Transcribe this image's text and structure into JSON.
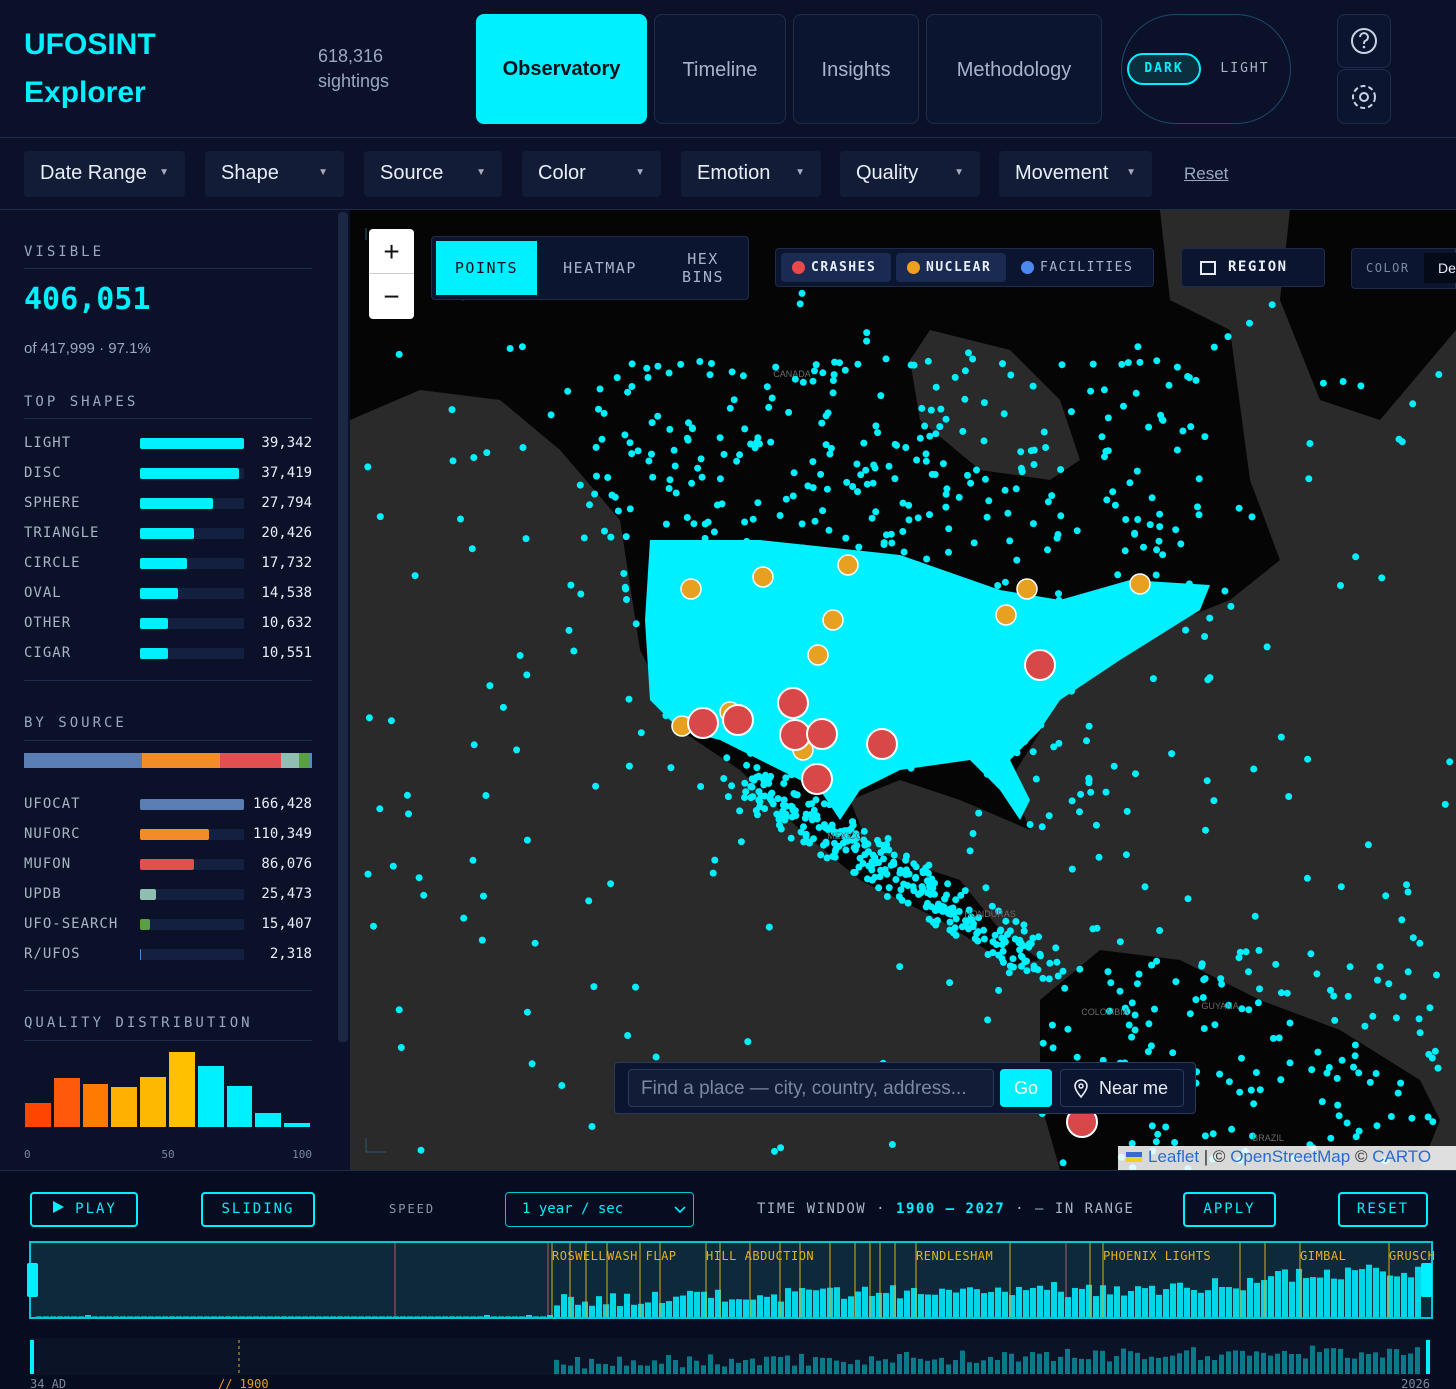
{
  "header": {
    "brand": [
      "UFOSINT",
      "Explorer"
    ],
    "count": "618,316",
    "count_label": "sightings",
    "tabs": [
      "Observatory",
      "Timeline",
      "Insights",
      "Methodology"
    ],
    "active_tab": 0,
    "theme": [
      "DARK",
      "LIGHT"
    ]
  },
  "filters": {
    "items": [
      "Date Range",
      "Shape",
      "Source",
      "Color",
      "Emotion",
      "Quality",
      "Movement"
    ],
    "reset": "Reset"
  },
  "sidebar": {
    "visible": {
      "label": "VISIBLE",
      "value": "406,051",
      "detail": "of 417,999 · 97.1%"
    },
    "top_shapes": {
      "title": "TOP SHAPES",
      "color": "#00f0ff",
      "categories": [
        "LIGHT",
        "DISC",
        "SPHERE",
        "TRIANGLE",
        "CIRCLE",
        "OVAL",
        "OTHER",
        "CIGAR"
      ],
      "values": [
        39342,
        37419,
        27794,
        20426,
        17732,
        14538,
        10632,
        10551
      ],
      "value_labels": [
        "39,342",
        "37,419",
        "27,794",
        "20,426",
        "17,732",
        "14,538",
        "10,632",
        "10,551"
      ]
    },
    "by_source": {
      "title": "BY SOURCE",
      "categories": [
        "UFOCAT",
        "NUFORC",
        "MUFON",
        "UPDB",
        "UFO-SEARCH",
        "R/UFOS"
      ],
      "colors": [
        "#5b7fb5",
        "#f28c28",
        "#e05050",
        "#8fbfb0",
        "#5aa040",
        "#4a8ad0"
      ],
      "values": [
        166428,
        110349,
        86076,
        25473,
        15407,
        2318
      ],
      "value_labels": [
        "166,428",
        "110,349",
        "86,076",
        "25,473",
        "15,407",
        "2,318"
      ]
    },
    "quality": {
      "type": "histogram",
      "title": "QUALITY DISTRIBUTION",
      "bins": [
        0,
        10,
        20,
        30,
        40,
        50,
        60,
        70,
        80,
        90,
        100
      ],
      "values": [
        23,
        48,
        42,
        39,
        49,
        73,
        59,
        40,
        14,
        4
      ],
      "colors": [
        "#ff4500",
        "#ff5a0a",
        "#ff7a00",
        "#ffb000",
        "#ffb800",
        "#ffc000",
        "#00f0ff",
        "#00f0ff",
        "#00f0ff",
        "#00f0ff"
      ],
      "xlim": [
        0,
        100
      ],
      "xticks": [
        0,
        50,
        100
      ]
    }
  },
  "map": {
    "zoom": [
      "+",
      "−"
    ],
    "modes": [
      "POINTS",
      "HEATMAP",
      "HEX BINS"
    ],
    "active_mode": 0,
    "layers": [
      {
        "name": "CRASHES",
        "color": "#e84a4a"
      },
      {
        "name": "NUCLEAR",
        "color": "#f0a020"
      },
      {
        "name": "FACILITIES",
        "color": "#4a8af0"
      }
    ],
    "region": "REGION",
    "color_label": "COLOR",
    "color_value": "De",
    "labels": [
      "CANADA",
      "MEXICO",
      "HONDURAS",
      "COLOMBIA",
      "GUYANA",
      "BRAZIL"
    ],
    "search": {
      "placeholder": "Find a place — city, country, address...",
      "go": "Go",
      "near": "Near me"
    },
    "attribution": [
      "Leaflet",
      "| ©",
      "OpenStreetMap",
      "©",
      "CARTO"
    ]
  },
  "timeline": {
    "play": "PLAY",
    "sliding": "SLIDING",
    "speed_label": "SPEED",
    "speed": "1 year / sec",
    "window": [
      "TIME WINDOW ·",
      "1900 — 2027",
      "· — IN RANGE"
    ],
    "apply": "APPLY",
    "reset": "RESET",
    "events": [
      "ROSWELL",
      "WASH FLAP",
      "HILL ABDUCTION",
      "RENDLESHAM",
      "PHOENIX LIGHTS",
      "GIMBAL",
      "GRUSCH"
    ],
    "axis": [
      "34 AD",
      "// 1900",
      "2026"
    ]
  }
}
